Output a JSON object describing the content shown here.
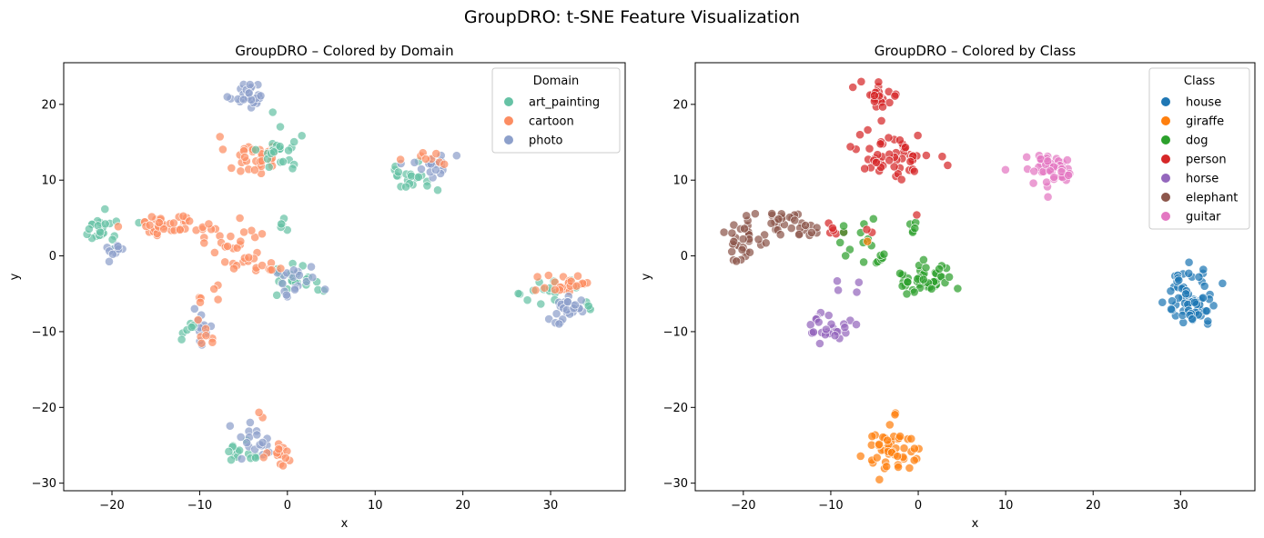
{
  "figure": {
    "suptitle": "GroupDRO: t-SNE Feature Visualization"
  },
  "chart_data": [
    {
      "type": "scatter",
      "title": "GroupDRO – Colored by Domain",
      "xlabel": "x",
      "ylabel": "y",
      "xlim": [
        -25.5,
        38.5
      ],
      "ylim": [
        -31,
        25.5
      ],
      "xticks": [
        "−20",
        "−10",
        "0",
        "10",
        "20",
        "30"
      ],
      "xtick_values": [
        -20,
        -10,
        0,
        10,
        20,
        30
      ],
      "yticks": [
        "−30",
        "−20",
        "−10",
        "0",
        "10",
        "20"
      ],
      "ytick_values": [
        -30,
        -20,
        -10,
        0,
        10,
        20
      ],
      "grid": false,
      "legend": {
        "title": "Domain",
        "position": "top-right"
      },
      "series": [
        {
          "name": "art_painting",
          "color": "#66c2a5"
        },
        {
          "name": "cartoon",
          "color": "#fc8d62"
        },
        {
          "name": "photo",
          "color": "#8da0cb"
        }
      ],
      "clusters": [
        {
          "group": "photo",
          "cx": -4.5,
          "cy": 21.3,
          "sx": 1.1,
          "sy": 0.9,
          "n": 28
        },
        {
          "group": "art_painting",
          "cx": -1.8,
          "cy": 19,
          "sx": 0.2,
          "sy": 0.2,
          "n": 1
        },
        {
          "group": "cartoon",
          "cx": -4.3,
          "cy": 13.2,
          "sx": 1.4,
          "sy": 1.3,
          "n": 30
        },
        {
          "group": "art_painting",
          "cx": -0.8,
          "cy": 13.5,
          "sx": 1.2,
          "sy": 1.4,
          "n": 24
        },
        {
          "group": "art_painting",
          "cx": 14.2,
          "cy": 10.5,
          "sx": 1.6,
          "sy": 1.0,
          "n": 20
        },
        {
          "group": "photo",
          "cx": 16.2,
          "cy": 12.0,
          "sx": 1.5,
          "sy": 0.8,
          "n": 18
        },
        {
          "group": "cartoon",
          "cx": 15.8,
          "cy": 12.8,
          "sx": 1.2,
          "sy": 0.6,
          "n": 8
        },
        {
          "group": "art_painting",
          "cx": -20.8,
          "cy": 3.6,
          "sx": 1.2,
          "sy": 1.0,
          "n": 24
        },
        {
          "group": "photo",
          "cx": -19.5,
          "cy": 0.8,
          "sx": 0.7,
          "sy": 0.6,
          "n": 10
        },
        {
          "group": "cartoon",
          "cx": -14.2,
          "cy": 4.2,
          "sx": 1.8,
          "sy": 0.8,
          "n": 34
        },
        {
          "group": "cartoon",
          "cx": -8.6,
          "cy": 3.4,
          "sx": 1.2,
          "sy": 0.8,
          "n": 10
        },
        {
          "group": "cartoon",
          "cx": -5.2,
          "cy": 1.2,
          "sx": 1.6,
          "sy": 1.4,
          "n": 16
        },
        {
          "group": "cartoon",
          "cx": -4.3,
          "cy": -1.2,
          "sx": 1.3,
          "sy": 0.7,
          "n": 10
        },
        {
          "group": "cartoon",
          "cx": -8.3,
          "cy": -5.6,
          "sx": 0.7,
          "sy": 1.0,
          "n": 5
        },
        {
          "group": "art_painting",
          "cx": -0.6,
          "cy": 4.2,
          "sx": 0.4,
          "sy": 0.7,
          "n": 5
        },
        {
          "group": "art_painting",
          "cx": 1.0,
          "cy": -2.9,
          "sx": 1.5,
          "sy": 1.0,
          "n": 22
        },
        {
          "group": "photo",
          "cx": 1.0,
          "cy": -3.4,
          "sx": 1.5,
          "sy": 1.0,
          "n": 18
        },
        {
          "group": "cartoon",
          "cx": -1.5,
          "cy": -1.6,
          "sx": 0.8,
          "sy": 0.4,
          "n": 5
        },
        {
          "group": "art_painting",
          "cx": 29.6,
          "cy": -4.6,
          "sx": 1.3,
          "sy": 1.3,
          "n": 14
        },
        {
          "group": "art_painting",
          "cx": 34.5,
          "cy": -6.8,
          "sx": 0.7,
          "sy": 0.6,
          "n": 4
        },
        {
          "group": "cartoon",
          "cx": 31.9,
          "cy": -3.6,
          "sx": 1.4,
          "sy": 1.1,
          "n": 26
        },
        {
          "group": "photo",
          "cx": 31.9,
          "cy": -7.2,
          "sx": 1.3,
          "sy": 1.0,
          "n": 26
        },
        {
          "group": "photo",
          "cx": -10.2,
          "cy": -9.6,
          "sx": 0.8,
          "sy": 1.0,
          "n": 12
        },
        {
          "group": "art_painting",
          "cx": -11.2,
          "cy": -9.2,
          "sx": 0.6,
          "sy": 1.3,
          "n": 7
        },
        {
          "group": "cartoon",
          "cx": -9.3,
          "cy": -9.5,
          "sx": 0.6,
          "sy": 1.2,
          "n": 8
        },
        {
          "group": "art_painting",
          "cx": -4.8,
          "cy": -25.6,
          "sx": 1.2,
          "sy": 1.1,
          "n": 14
        },
        {
          "group": "photo",
          "cx": -3.2,
          "cy": -24.5,
          "sx": 1.3,
          "sy": 1.3,
          "n": 18
        },
        {
          "group": "cartoon",
          "cx": -1.0,
          "cy": -26.6,
          "sx": 1.0,
          "sy": 0.8,
          "n": 16
        },
        {
          "group": "cartoon",
          "cx": -2.8,
          "cy": -21.2,
          "sx": 0.3,
          "sy": 0.3,
          "n": 2
        }
      ]
    },
    {
      "type": "scatter",
      "title": "GroupDRO – Colored by Class",
      "xlabel": "x",
      "ylabel": "y",
      "xlim": [
        -25.5,
        38.5
      ],
      "ylim": [
        -31,
        25.5
      ],
      "xticks": [
        "−20",
        "−10",
        "0",
        "10",
        "20",
        "30"
      ],
      "xtick_values": [
        -20,
        -10,
        0,
        10,
        20,
        30
      ],
      "yticks": [
        "−30",
        "−20",
        "−10",
        "0",
        "10",
        "20"
      ],
      "ytick_values": [
        -30,
        -20,
        -10,
        0,
        10,
        20
      ],
      "grid": false,
      "legend": {
        "title": "Class",
        "position": "top-right"
      },
      "series": [
        {
          "name": "house",
          "color": "#1f77b4"
        },
        {
          "name": "giraffe",
          "color": "#ff7f0e"
        },
        {
          "name": "dog",
          "color": "#2ca02c"
        },
        {
          "name": "person",
          "color": "#d62728"
        },
        {
          "name": "horse",
          "color": "#9467bd"
        },
        {
          "name": "elephant",
          "color": "#8c564b"
        },
        {
          "name": "guitar",
          "color": "#e377c2"
        }
      ],
      "clusters": [
        {
          "group": "person",
          "cx": -4.5,
          "cy": 21.3,
          "sx": 1.1,
          "sy": 0.9,
          "n": 28
        },
        {
          "group": "person",
          "cx": -2.8,
          "cy": 13.3,
          "sx": 2.1,
          "sy": 1.5,
          "n": 56
        },
        {
          "group": "person",
          "cx": -9.5,
          "cy": 3.3,
          "sx": 0.8,
          "sy": 0.6,
          "n": 6
        },
        {
          "group": "guitar",
          "cx": 15.2,
          "cy": 11.4,
          "sx": 1.8,
          "sy": 1.1,
          "n": 46
        },
        {
          "group": "elephant",
          "cx": -19.8,
          "cy": 2.5,
          "sx": 1.3,
          "sy": 1.6,
          "n": 34
        },
        {
          "group": "elephant",
          "cx": -14.8,
          "cy": 4.3,
          "sx": 1.5,
          "sy": 0.8,
          "n": 30
        },
        {
          "group": "dog",
          "cx": -6.8,
          "cy": 1.6,
          "sx": 1.2,
          "sy": 1.3,
          "n": 12
        },
        {
          "group": "dog",
          "cx": -4.4,
          "cy": -0.6,
          "sx": 0.8,
          "sy": 0.5,
          "n": 6
        },
        {
          "group": "dog",
          "cx": -0.6,
          "cy": 3.5,
          "sx": 0.4,
          "sy": 0.8,
          "n": 5
        },
        {
          "group": "dog",
          "cx": 0.8,
          "cy": -3.0,
          "sx": 1.6,
          "sy": 1.1,
          "n": 45
        },
        {
          "group": "person",
          "cx": -5.5,
          "cy": 3.3,
          "sx": 0.4,
          "sy": 0.4,
          "n": 2
        },
        {
          "group": "person",
          "cx": 0.0,
          "cy": 5.2,
          "sx": 0.2,
          "sy": 0.2,
          "n": 1
        },
        {
          "group": "giraffe",
          "cx": -5.5,
          "cy": 2.4,
          "sx": 0.2,
          "sy": 0.2,
          "n": 1
        },
        {
          "group": "horse",
          "cx": -10.2,
          "cy": -9.4,
          "sx": 1.1,
          "sy": 1.2,
          "n": 27
        },
        {
          "group": "horse",
          "cx": -7.5,
          "cy": -3.5,
          "sx": 0.9,
          "sy": 1.0,
          "n": 4
        },
        {
          "group": "house",
          "cx": 31.2,
          "cy": -5.5,
          "sx": 1.6,
          "sy": 1.8,
          "n": 70
        },
        {
          "group": "giraffe",
          "cx": -2.9,
          "cy": -25.6,
          "sx": 1.6,
          "sy": 1.4,
          "n": 48
        },
        {
          "group": "giraffe",
          "cx": -2.8,
          "cy": -21.2,
          "sx": 0.3,
          "sy": 0.3,
          "n": 2
        }
      ]
    }
  ]
}
